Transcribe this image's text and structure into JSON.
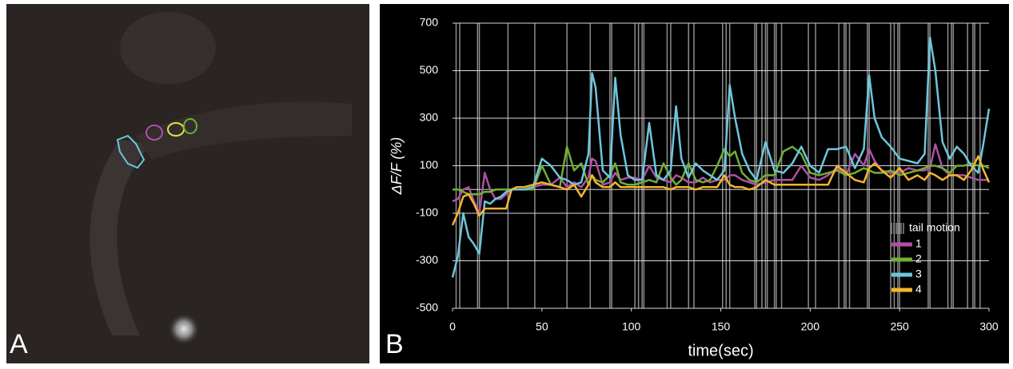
{
  "panel_a": {
    "label": "A"
  },
  "chart_data": {
    "type": "line",
    "panel_label": "B",
    "x_label": "time(sec)",
    "y_label": "ΔF/F (%)",
    "xlim": [
      0,
      300
    ],
    "xticks": [
      0,
      50,
      100,
      150,
      200,
      250,
      300
    ],
    "ylim": [
      -500,
      700
    ],
    "yticks": [
      -500,
      -300,
      -100,
      100,
      300,
      500,
      700
    ],
    "grid": true,
    "legend": "lower right",
    "events": {
      "name": "tail motion",
      "color": "#8c8c8c",
      "x": [
        2,
        4,
        14,
        15,
        31,
        46,
        64,
        77,
        88,
        89,
        102,
        104,
        106,
        107,
        120,
        122,
        132,
        135,
        151,
        153,
        155,
        169,
        170,
        173,
        175,
        176,
        180,
        181,
        184,
        199,
        203,
        216,
        219,
        220,
        222,
        232,
        233,
        245,
        247,
        249,
        250,
        266,
        267,
        277,
        279,
        280,
        288,
        291,
        292,
        295
      ]
    },
    "x": [
      0,
      3,
      6,
      9,
      12,
      15,
      18,
      21,
      24,
      27,
      30,
      33,
      36,
      40,
      45,
      50,
      55,
      60,
      64,
      68,
      72,
      76,
      78,
      80,
      84,
      88,
      91,
      94,
      98,
      102,
      106,
      110,
      114,
      118,
      122,
      125,
      128,
      132,
      136,
      140,
      144,
      148,
      152,
      155,
      158,
      162,
      166,
      170,
      175,
      180,
      185,
      190,
      195,
      200,
      205,
      210,
      215,
      220,
      225,
      230,
      233,
      236,
      240,
      245,
      250,
      255,
      260,
      264,
      267,
      270,
      274,
      278,
      282,
      286,
      290,
      294,
      297,
      300
    ],
    "series": [
      {
        "name": "1",
        "color": "#b04fa6",
        "values": [
          -50,
          -40,
          0,
          10,
          -50,
          -100,
          70,
          0,
          -40,
          -40,
          -20,
          0,
          0,
          0,
          10,
          20,
          20,
          50,
          10,
          30,
          10,
          50,
          130,
          120,
          20,
          30,
          70,
          40,
          50,
          50,
          40,
          100,
          50,
          40,
          30,
          60,
          50,
          30,
          30,
          50,
          30,
          40,
          40,
          60,
          60,
          40,
          30,
          20,
          30,
          40,
          40,
          40,
          100,
          50,
          40,
          60,
          90,
          60,
          150,
          100,
          170,
          120,
          80,
          70,
          70,
          90,
          80,
          80,
          90,
          190,
          90,
          60,
          60,
          60,
          50,
          40,
          40,
          40
        ]
      },
      {
        "name": "2",
        "color": "#6fb033",
        "values": [
          0,
          0,
          -10,
          -20,
          -20,
          -20,
          -10,
          -10,
          0,
          0,
          0,
          0,
          0,
          0,
          0,
          100,
          20,
          10,
          180,
          80,
          110,
          20,
          60,
          40,
          30,
          60,
          110,
          30,
          20,
          20,
          30,
          40,
          30,
          110,
          50,
          20,
          40,
          110,
          40,
          30,
          40,
          100,
          170,
          140,
          160,
          70,
          40,
          30,
          60,
          60,
          160,
          180,
          150,
          70,
          60,
          70,
          80,
          60,
          70,
          90,
          80,
          70,
          70,
          80,
          60,
          70,
          80,
          90,
          100,
          100,
          90,
          70,
          100,
          100,
          110,
          100,
          100,
          90
        ]
      },
      {
        "name": "3",
        "color": "#6ec6dc",
        "values": [
          -370,
          -280,
          -100,
          -200,
          -230,
          -270,
          -50,
          -60,
          -40,
          -30,
          -10,
          0,
          0,
          0,
          10,
          130,
          100,
          50,
          40,
          20,
          30,
          150,
          490,
          430,
          80,
          50,
          470,
          230,
          60,
          40,
          40,
          280,
          60,
          40,
          80,
          350,
          130,
          50,
          110,
          80,
          60,
          40,
          80,
          440,
          300,
          150,
          80,
          40,
          200,
          80,
          70,
          110,
          180,
          100,
          70,
          170,
          170,
          180,
          90,
          170,
          480,
          300,
          220,
          180,
          130,
          120,
          110,
          150,
          640,
          500,
          200,
          130,
          180,
          150,
          100,
          70,
          200,
          340
        ]
      },
      {
        "name": "4",
        "color": "#f5b52c",
        "values": [
          -150,
          -100,
          -30,
          -20,
          -60,
          -110,
          -80,
          -80,
          -80,
          -80,
          -80,
          0,
          10,
          10,
          20,
          30,
          20,
          10,
          0,
          20,
          -30,
          20,
          60,
          30,
          10,
          10,
          30,
          10,
          10,
          10,
          10,
          10,
          10,
          10,
          0,
          10,
          10,
          10,
          0,
          10,
          10,
          10,
          60,
          20,
          10,
          10,
          0,
          10,
          40,
          20,
          20,
          20,
          20,
          20,
          20,
          20,
          100,
          70,
          40,
          30,
          90,
          110,
          80,
          50,
          90,
          40,
          60,
          40,
          70,
          60,
          40,
          60,
          60,
          40,
          80,
          140,
          80,
          30
        ]
      }
    ]
  }
}
